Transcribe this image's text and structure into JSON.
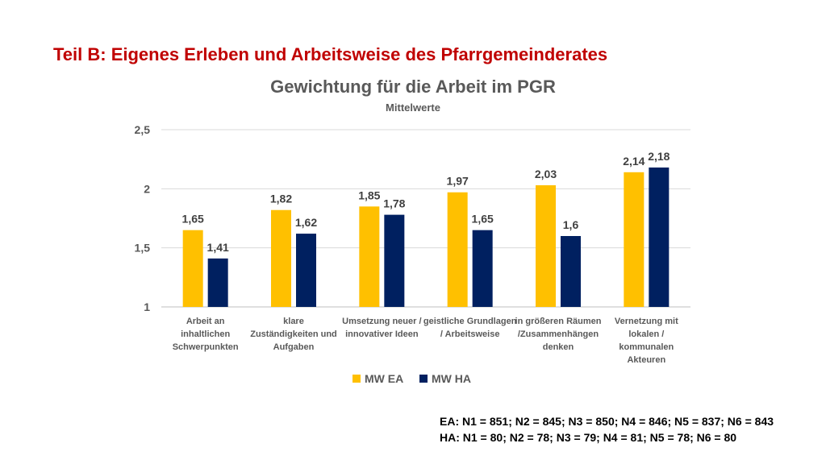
{
  "slide_title": "Teil B: Eigenes Erleben und Arbeitsweise des Pfarrgemeinderates",
  "colors": {
    "ea": "#ffc000",
    "ha": "#002060",
    "title_red": "#c00000"
  },
  "chart_data": {
    "type": "bar",
    "title": "Gewichtung für die Arbeit im PGR",
    "subtitle": "Mittelwerte",
    "categories": [
      [
        "Arbeit an",
        "inhaltlichen",
        "Schwerpunkten"
      ],
      [
        "klare",
        "Zuständigkeiten und",
        "Aufgaben"
      ],
      [
        "Umsetzung neuer /",
        "innovativer Ideen"
      ],
      [
        "geistliche Grundlagen",
        "/ Arbeitsweise"
      ],
      [
        "in größeren Räumen",
        "/Zusammenhängen",
        "denken"
      ],
      [
        "Vernetzung mit",
        "lokalen /",
        "kommunalen",
        "Akteuren"
      ]
    ],
    "series": [
      {
        "name": "MW EA",
        "values": [
          1.65,
          1.82,
          1.85,
          1.97,
          2.03,
          2.14
        ],
        "labels": [
          "1,65",
          "1,82",
          "1,85",
          "1,97",
          "2,03",
          "2,14"
        ]
      },
      {
        "name": "MW HA",
        "values": [
          1.41,
          1.62,
          1.78,
          1.65,
          1.6,
          2.18
        ],
        "labels": [
          "1,41",
          "1,62",
          "1,78",
          "1,65",
          "1,6",
          "2,18"
        ]
      }
    ],
    "ylim": [
      1,
      2.5
    ],
    "yticks": [
      1,
      1.5,
      2,
      2.5
    ],
    "ytick_labels": [
      "1",
      "1,5",
      "2",
      "2,5"
    ],
    "grid": true,
    "legend_position": "bottom"
  },
  "notes": [
    "EA: N1 = 851; N2 = 845; N3 = 850; N4 = 846; N5 = 837; N6 = 843",
    "HA: N1 = 80; N2 = 78; N3 = 79; N4 = 81; N5 = 78; N6 = 80"
  ]
}
